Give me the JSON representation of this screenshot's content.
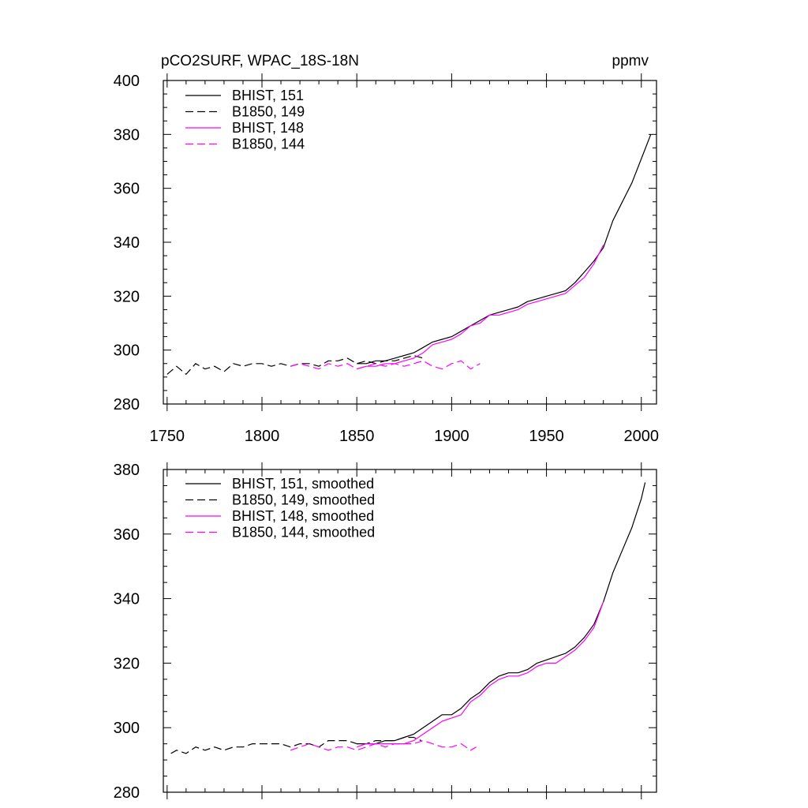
{
  "chart_data": [
    {
      "type": "line",
      "title": "pCO2SURF, WPAC_18S-18N",
      "units": "ppmv",
      "xlabel": "",
      "ylabel": "",
      "xlim": [
        1748,
        2008
      ],
      "ylim": [
        280,
        400
      ],
      "xticks": [
        1750,
        1800,
        1850,
        1900,
        1950,
        2000
      ],
      "yticks": [
        280,
        300,
        320,
        340,
        360,
        380,
        400
      ],
      "grid": false,
      "legend_position": "top-left",
      "series": [
        {
          "name": "BHIST, 151",
          "color": "#000000",
          "dash": "solid",
          "x": [
            1850,
            1855,
            1860,
            1865,
            1870,
            1875,
            1880,
            1885,
            1890,
            1895,
            1900,
            1905,
            1910,
            1915,
            1920,
            1925,
            1930,
            1935,
            1940,
            1945,
            1950,
            1955,
            1960,
            1965,
            1970,
            1975,
            1980,
            1985,
            1990,
            1995,
            2000,
            2005
          ],
          "y": [
            295,
            295,
            296,
            296,
            297,
            298,
            299,
            301,
            303,
            304,
            305,
            307,
            309,
            311,
            313,
            314,
            315,
            316,
            318,
            319,
            320,
            321,
            322,
            325,
            329,
            333,
            338,
            348,
            355,
            362,
            371,
            380
          ]
        },
        {
          "name": "B1850, 149",
          "color": "#000000",
          "dash": "dash",
          "x": [
            1750,
            1755,
            1760,
            1765,
            1770,
            1775,
            1780,
            1785,
            1790,
            1795,
            1800,
            1805,
            1810,
            1815,
            1820,
            1825,
            1830,
            1835,
            1840,
            1845,
            1850,
            1855,
            1860,
            1865,
            1870,
            1875,
            1880,
            1885
          ],
          "y": [
            291,
            294,
            291,
            295,
            293,
            294,
            292,
            295,
            294,
            295,
            295,
            294,
            295,
            294,
            295,
            295,
            294,
            296,
            296,
            297,
            295,
            296,
            295,
            296,
            296,
            297,
            298,
            297
          ]
        },
        {
          "name": "BHIST, 148",
          "color": "#ff00ff",
          "dash": "solid",
          "x": [
            1850,
            1855,
            1860,
            1865,
            1870,
            1875,
            1880,
            1885,
            1890,
            1895,
            1900,
            1905,
            1910,
            1915,
            1920,
            1925,
            1930,
            1935,
            1940,
            1945,
            1950,
            1955,
            1960,
            1965,
            1970,
            1975,
            1980
          ],
          "y": [
            293,
            294,
            294,
            295,
            295,
            296,
            297,
            299,
            302,
            303,
            304,
            306,
            309,
            310,
            313,
            313,
            314,
            315,
            317,
            318,
            319,
            320,
            321,
            324,
            327,
            332,
            339
          ]
        },
        {
          "name": "B1850, 144",
          "color": "#ff00ff",
          "dash": "dash",
          "x": [
            1815,
            1820,
            1825,
            1830,
            1835,
            1840,
            1845,
            1850,
            1855,
            1860,
            1865,
            1870,
            1875,
            1880,
            1885,
            1890,
            1895,
            1900,
            1905,
            1910,
            1915
          ],
          "y": [
            294,
            295,
            294,
            293,
            295,
            294,
            295,
            293,
            294,
            295,
            294,
            295,
            294,
            295,
            296,
            294,
            293,
            295,
            296,
            293,
            295
          ]
        }
      ]
    },
    {
      "type": "line",
      "title": "",
      "xlabel": "",
      "ylabel": "",
      "xlim": [
        1748,
        2008
      ],
      "ylim": [
        280,
        380
      ],
      "xticks": [
        1750,
        1800,
        1850,
        1900,
        1950,
        2000
      ],
      "yticks": [
        280,
        300,
        320,
        340,
        360,
        380
      ],
      "grid": false,
      "legend_position": "top-left",
      "series": [
        {
          "name": "BHIST, 151, smoothed",
          "color": "#000000",
          "dash": "solid",
          "x": [
            1850,
            1855,
            1860,
            1865,
            1870,
            1875,
            1880,
            1885,
            1890,
            1895,
            1900,
            1905,
            1910,
            1915,
            1920,
            1925,
            1930,
            1935,
            1940,
            1945,
            1950,
            1955,
            1960,
            1965,
            1970,
            1975,
            1980,
            1985,
            1990,
            1995,
            2000,
            2002
          ],
          "y": [
            295,
            295,
            295,
            296,
            296,
            297,
            298,
            300,
            302,
            304,
            304,
            306,
            309,
            311,
            314,
            316,
            317,
            317,
            318,
            320,
            321,
            322,
            323,
            325,
            328,
            332,
            339,
            348,
            355,
            362,
            371,
            376
          ]
        },
        {
          "name": "B1850, 149, smoothed",
          "color": "#000000",
          "dash": "dash",
          "x": [
            1752,
            1755,
            1760,
            1765,
            1770,
            1775,
            1780,
            1785,
            1790,
            1795,
            1800,
            1805,
            1810,
            1815,
            1820,
            1825,
            1830,
            1835,
            1840,
            1845,
            1850,
            1855,
            1860,
            1865,
            1870,
            1875,
            1880,
            1884
          ],
          "y": [
            292,
            293,
            292,
            294,
            293,
            294,
            293,
            294,
            294,
            295,
            295,
            295,
            295,
            294,
            295,
            295,
            294,
            296,
            296,
            296,
            295,
            295,
            296,
            296,
            296,
            297,
            297,
            296
          ]
        },
        {
          "name": "BHIST, 148, smoothed",
          "color": "#ff00ff",
          "dash": "solid",
          "x": [
            1850,
            1855,
            1860,
            1865,
            1870,
            1875,
            1880,
            1885,
            1890,
            1895,
            1900,
            1905,
            1910,
            1915,
            1920,
            1925,
            1930,
            1935,
            1940,
            1945,
            1950,
            1955,
            1960,
            1965,
            1970,
            1975,
            1980
          ],
          "y": [
            294,
            295,
            295,
            295,
            295,
            295,
            296,
            298,
            300,
            302,
            303,
            304,
            308,
            310,
            313,
            315,
            316,
            316,
            317,
            319,
            320,
            320,
            322,
            324,
            327,
            331,
            339
          ]
        },
        {
          "name": "B1850, 144, smoothed",
          "color": "#ff00ff",
          "dash": "dash",
          "x": [
            1815,
            1820,
            1825,
            1830,
            1835,
            1840,
            1845,
            1850,
            1855,
            1860,
            1865,
            1870,
            1875,
            1880,
            1885,
            1890,
            1895,
            1900,
            1905,
            1910,
            1913
          ],
          "y": [
            293,
            294,
            295,
            294,
            293,
            294,
            294,
            293,
            294,
            295,
            294,
            295,
            295,
            295,
            296,
            295,
            294,
            294,
            295,
            293,
            294
          ]
        }
      ]
    }
  ]
}
